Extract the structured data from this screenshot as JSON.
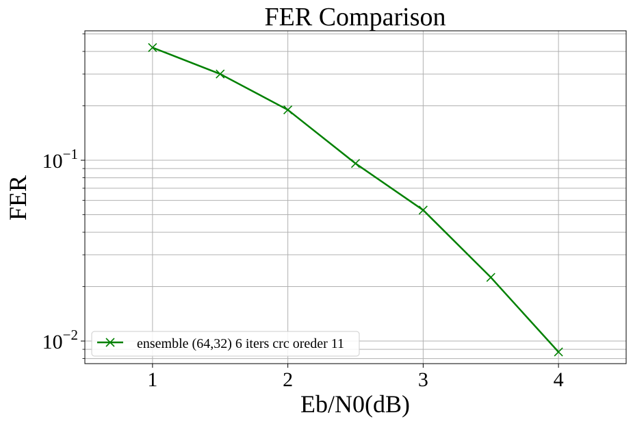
{
  "chart_data": {
    "type": "line",
    "title": "FER Comparison",
    "xlabel": "Eb/N0(dB)",
    "ylabel": "FER",
    "x_ticks": [
      1,
      2,
      3,
      4
    ],
    "x_tick_labels": [
      "1",
      "2",
      "3",
      "4"
    ],
    "y_scale": "log",
    "y_major_ticks": [
      0.01,
      0.1
    ],
    "y_tick_labels": [
      {
        "base": "10",
        "exp": "−2"
      },
      {
        "base": "10",
        "exp": "−1"
      }
    ],
    "xlim": [
      0.5,
      4.5
    ],
    "ylim": [
      0.0075,
      0.52
    ],
    "grid": "both (major and minor)",
    "legend_location": "lower left",
    "series": [
      {
        "name": "ensemble (64,32) 6 iters crc oreder 11",
        "color": "#008000",
        "marker": "x",
        "x": [
          1,
          1.5,
          2,
          2.5,
          3,
          3.5,
          4
        ],
        "y": [
          0.42,
          0.3,
          0.19,
          0.096,
          0.053,
          0.0225,
          0.0087
        ]
      }
    ]
  }
}
